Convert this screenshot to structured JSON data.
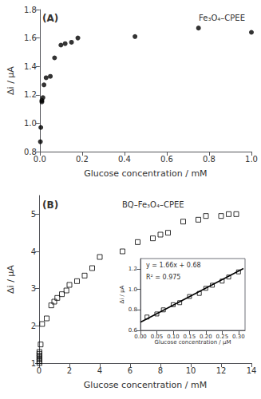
{
  "chart_data": [
    {
      "type": "scatter",
      "annotations": [
        "(A)",
        "Fe₃O₄–CPEE"
      ],
      "x": [
        0.003,
        0.005,
        0.01,
        0.01,
        0.015,
        0.02,
        0.03,
        0.05,
        0.07,
        0.1,
        0.12,
        0.15,
        0.18,
        0.45,
        0.75,
        1.0
      ],
      "values": [
        0.87,
        0.97,
        1.15,
        1.16,
        1.18,
        1.27,
        1.32,
        1.33,
        1.46,
        1.55,
        1.56,
        1.57,
        1.6,
        1.61,
        1.67,
        1.64
      ],
      "color": "#000000",
      "marker": "circle",
      "xlabel": "Glucose concentration / mM",
      "ylabel": "Δi / μA",
      "xlim": [
        0,
        1.0
      ],
      "ylim": [
        0.8,
        1.8
      ],
      "xticks": [
        {
          "value": 0,
          "label": "0.0"
        },
        0.2,
        0.4,
        0.6,
        0.8,
        {
          "value": 1.0,
          "label": "1.0"
        }
      ],
      "yticks": [
        0.8,
        {
          "value": 1.0,
          "label": "1.0"
        },
        1.2,
        1.4,
        1.6,
        1.8
      ],
      "grid": false
    },
    {
      "type": "scatter",
      "annotations": [
        "(B)",
        "BQ–Fe₃O₄–CPEE"
      ],
      "x": [
        0.02,
        0.02,
        0.02,
        0.02,
        0.02,
        0.02,
        0.02,
        0.1,
        0.2,
        0.5,
        0.8,
        1.0,
        1.2,
        1.5,
        1.8,
        2.0,
        2.5,
        3.0,
        3.5,
        4.0,
        5.5,
        6.5,
        7.5,
        8.0,
        8.5,
        9.5,
        10.5,
        11.0,
        12.0,
        12.5,
        13.0
      ],
      "values": [
        1.0,
        1.05,
        1.1,
        1.15,
        1.2,
        1.25,
        1.3,
        1.5,
        2.05,
        2.2,
        2.55,
        2.65,
        2.75,
        2.85,
        2.95,
        3.1,
        3.2,
        3.35,
        3.55,
        3.85,
        4.0,
        4.25,
        4.35,
        4.45,
        4.5,
        4.8,
        4.85,
        4.95,
        4.95,
        5.0,
        5.0
      ],
      "color": "#000000",
      "marker": "square",
      "xlabel": "Glucose concentration / mM",
      "ylabel": "Δi / μA",
      "xlim": [
        0,
        14
      ],
      "ylim": [
        1,
        5.5
      ],
      "xticks": [
        0,
        2,
        4,
        6,
        8,
        10,
        12,
        14
      ],
      "yticks": [
        1,
        2,
        3,
        4,
        5
      ],
      "grid": false
    },
    {
      "type": "scatter",
      "annotations": [
        "y = 1.66x + 0.68",
        "R² = 0.975"
      ],
      "series": [
        {
          "type": "scatter",
          "marker": "square",
          "color": "#000000",
          "x": [
            0.02,
            0.05,
            0.07,
            0.1,
            0.12,
            0.15,
            0.18,
            0.2,
            0.22,
            0.25,
            0.27,
            0.3
          ],
          "values": [
            0.73,
            0.76,
            0.8,
            0.85,
            0.87,
            0.93,
            0.96,
            1.01,
            1.04,
            1.08,
            1.12,
            1.17
          ]
        },
        {
          "type": "line",
          "line_style": "solid",
          "color": "#000000",
          "x": [
            0.0,
            0.315
          ],
          "values": [
            0.68,
            1.2029
          ]
        }
      ],
      "xlabel": "Glucose concentration / μM",
      "ylabel": "Δi / μA",
      "xlim": [
        0.0,
        0.32
      ],
      "ylim": [
        0.6,
        1.3
      ],
      "xticks": [
        {
          "value": 0,
          "label": "0.00"
        },
        0.05,
        {
          "value": 0.1,
          "label": "0.10"
        },
        0.15,
        {
          "value": 0.2,
          "label": "0.20"
        },
        0.25,
        {
          "value": 0.3,
          "label": "0.30"
        }
      ],
      "yticks": [
        0.6,
        0.8,
        {
          "value": 1.0,
          "label": "1.0"
        },
        1.2
      ],
      "grid": false
    }
  ]
}
